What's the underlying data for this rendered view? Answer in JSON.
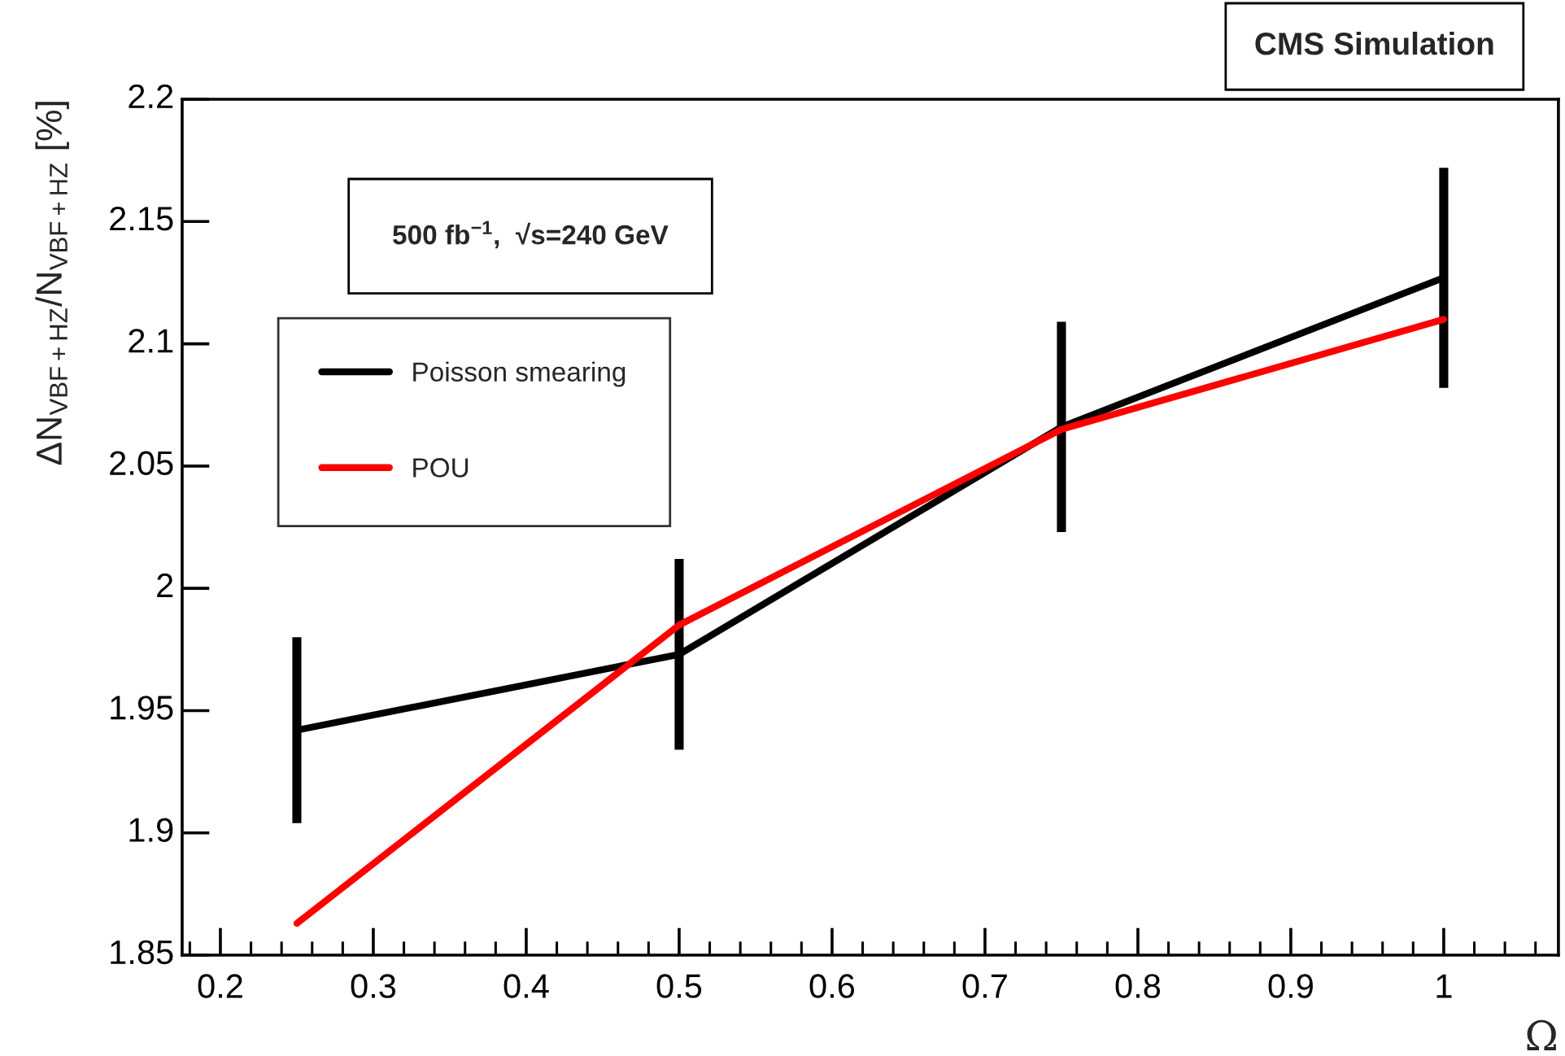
{
  "chart_data": {
    "type": "line",
    "title": "CMS Simulation",
    "xlabel": "Ω",
    "ylabel": "ΔN$_{VBF+HZ}$/N$_{VBF+HZ}$ [%]",
    "annotations": [
      "500 fb$^{−1}$,  √s=240 GeV"
    ],
    "x": [
      0.25,
      0.5,
      0.75,
      1.0
    ],
    "series": [
      {
        "name": "Poisson smearing",
        "color": "#000000",
        "values": [
          1.942,
          1.973,
          2.066,
          2.127
        ],
        "errors": [
          0.038,
          0.039,
          0.043,
          0.045
        ]
      },
      {
        "name": "POU",
        "color": "#ff0000",
        "values": [
          1.863,
          1.985,
          2.065,
          2.11
        ]
      }
    ],
    "xlim": [
      0.175,
      1.075
    ],
    "xticks": [
      0.2,
      0.3,
      0.4,
      0.5,
      0.6,
      0.7,
      0.8,
      0.9,
      1
    ],
    "ylim": [
      1.85,
      2.2
    ],
    "yticks": [
      1.85,
      1.9,
      1.95,
      2,
      2.05,
      2.1,
      2.15,
      2.2
    ],
    "legend": "top left",
    "grid": false,
    "marker": "none",
    "line_style": "solid"
  }
}
